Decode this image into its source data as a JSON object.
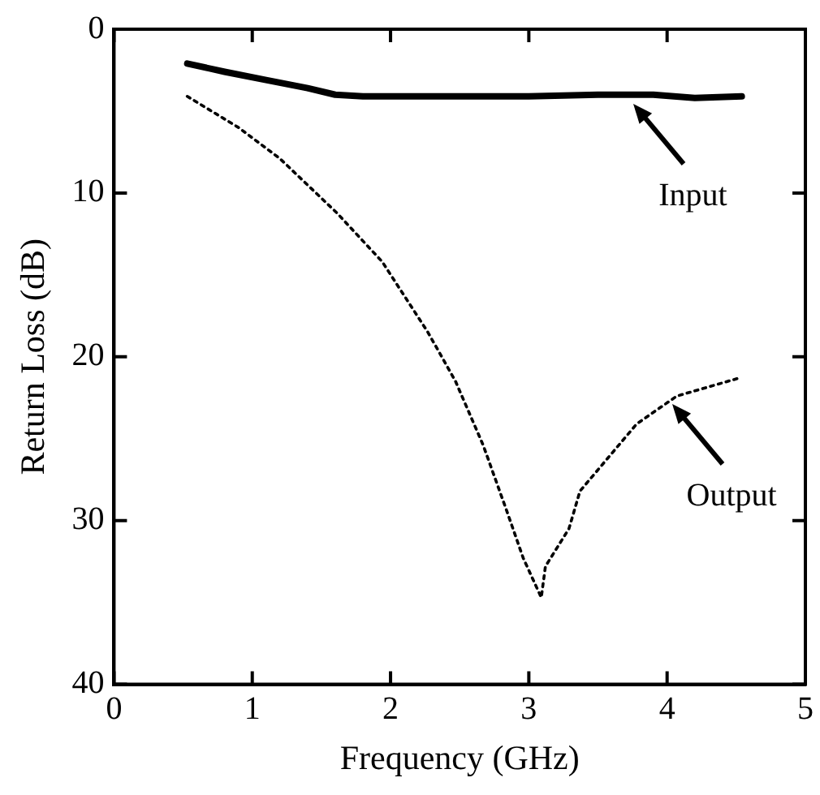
{
  "chart_data": {
    "type": "line",
    "xlabel": "Frequency (GHz)",
    "ylabel": "Return Loss (dB)",
    "xlim": [
      0,
      5
    ],
    "xticks": [
      0,
      1,
      2,
      3,
      4,
      5
    ],
    "ylim": [
      40,
      0
    ],
    "yticks": [
      0,
      10,
      20,
      30,
      40
    ],
    "grid": false,
    "legend": false,
    "marker": "none",
    "series": [
      {
        "color": "#000000",
        "line_style": "solid",
        "x": [
          0.53,
          0.8,
          1.1,
          1.4,
          1.6,
          1.8,
          2.5,
          3.0,
          3.5,
          3.9,
          4.2,
          4.54
        ],
        "values": [
          2.1,
          2.6,
          3.1,
          3.6,
          4.0,
          4.1,
          4.1,
          4.1,
          4.0,
          4.0,
          4.2,
          4.1
        ]
      },
      {
        "color": "#000000",
        "line_style": "dotted",
        "x": [
          0.53,
          0.9,
          1.2,
          1.61,
          1.94,
          2.27,
          2.47,
          2.67,
          2.84,
          2.96,
          3.09,
          3.12,
          3.29,
          3.37,
          3.57,
          3.78,
          4.07,
          4.52
        ],
        "values": [
          4.1,
          6.0,
          7.9,
          11.2,
          14.2,
          18.5,
          21.5,
          25.4,
          29.4,
          32.3,
          34.7,
          32.8,
          30.5,
          28.2,
          26.2,
          24.1,
          22.4,
          21.3
        ]
      }
    ],
    "annotations": [
      {
        "text": "Input",
        "x": 3.74,
        "y": 4.1
      },
      {
        "text": "Output",
        "x": 4.02,
        "y": 22.4
      }
    ]
  }
}
